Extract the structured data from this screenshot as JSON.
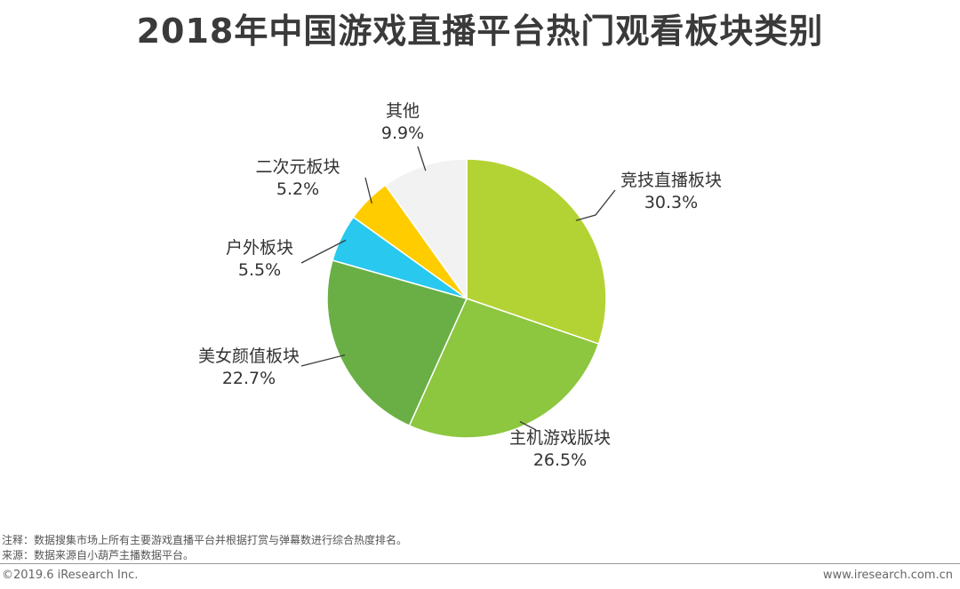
{
  "title": "2018年中国游戏直播平台热门观看板块类别",
  "chart_data": {
    "type": "pie",
    "slices": [
      {
        "name": "竞技直播板块",
        "value": 30.3,
        "label": "30.3%",
        "color": "#b3d334"
      },
      {
        "name": "主机游戏版块",
        "value": 26.5,
        "label": "26.5%",
        "color": "#8dc63f"
      },
      {
        "name": "美女颜值板块",
        "value": 22.7,
        "label": "22.7%",
        "color": "#6aaf45"
      },
      {
        "name": "户外板块",
        "value": 5.5,
        "label": "5.5%",
        "color": "#29c8ef"
      },
      {
        "name": "二次元板块",
        "value": 5.2,
        "label": "5.2%",
        "color": "#ffcc00"
      },
      {
        "name": "其他",
        "value": 9.9,
        "label": "9.9%",
        "color": "#f2f2f2"
      }
    ]
  },
  "notes": {
    "line1": "注释：数据搜集市场上所有主要游戏直播平台并根据打赏与弹幕数进行综合热度排名。",
    "line2": "来源：数据来源自小葫芦主播数据平台。"
  },
  "footer": {
    "copyright": "©2019.6 iResearch Inc.",
    "website": "www.iresearch.com.cn"
  }
}
